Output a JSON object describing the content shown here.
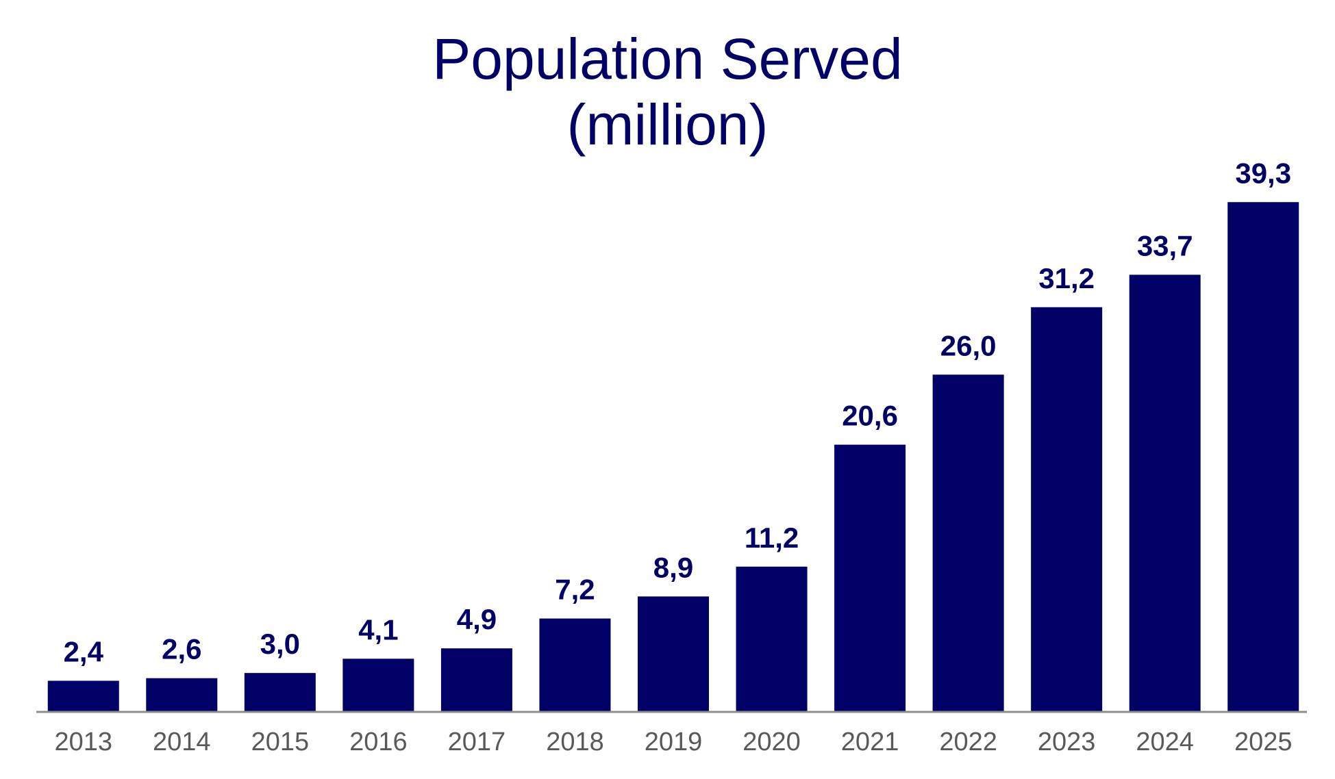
{
  "chart_data": {
    "type": "bar",
    "title": "Population Served",
    "subtitle": "(million)",
    "categories": [
      "2013",
      "2014",
      "2015",
      "2016",
      "2017",
      "2018",
      "2019",
      "2020",
      "2021",
      "2022",
      "2023",
      "2024",
      "2025"
    ],
    "values": [
      2.4,
      2.6,
      3.0,
      4.1,
      4.9,
      7.2,
      8.9,
      11.2,
      20.6,
      26.0,
      31.2,
      33.7,
      39.3
    ],
    "data_labels": [
      "2,4",
      "2,6",
      "3,0",
      "4,1",
      "4,9",
      "7,2",
      "8,9",
      "11,2",
      "20,6",
      "26,0",
      "31,2",
      "33,7",
      "39,3"
    ],
    "xlabel": "",
    "ylabel": "",
    "ylim": [
      0,
      40
    ],
    "grid": false,
    "legend": "none",
    "colors": {
      "bar": "#000066",
      "title": "#000066",
      "tick_label": "#595959",
      "axis": "#8c8c8c"
    }
  }
}
